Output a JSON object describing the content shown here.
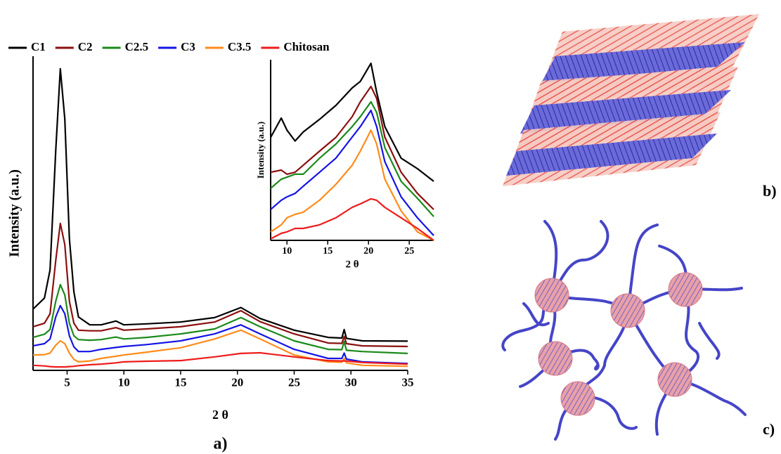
{
  "chart_data": [
    {
      "type": "line",
      "caption": "a)",
      "xlabel": "2 θ",
      "ylabel": "Intensity (a.u.)",
      "xlim": [
        2,
        35
      ],
      "xticks": [
        5,
        10,
        15,
        20,
        25,
        30,
        35
      ],
      "ylim": [
        0,
        100
      ],
      "x": [
        2,
        3,
        3.5,
        4,
        4.4,
        4.8,
        5.2,
        5.6,
        6,
        7,
        8,
        9.3,
        10,
        12,
        15,
        18,
        20.3,
        22,
        25,
        28,
        29.2,
        29.4,
        29.6,
        31,
        35
      ],
      "series": [
        {
          "name": "C1",
          "color": "#000000",
          "values": [
            19.5,
            23,
            32,
            70,
            96,
            80,
            42,
            25,
            17,
            14.5,
            14.5,
            15.7,
            14.5,
            14.8,
            15.4,
            16.8,
            20,
            16.5,
            12.8,
            10.5,
            10.3,
            13,
            10.2,
            9.4,
            9.3
          ]
        },
        {
          "name": "C2",
          "color": "#8b0f0f",
          "values": [
            13.9,
            15,
            18,
            35,
            46.8,
            40,
            22,
            15,
            12.8,
            12.6,
            12.6,
            13.6,
            12.8,
            13.2,
            13.9,
            15.4,
            19,
            15.5,
            11.6,
            8.7,
            8.6,
            10.8,
            8.5,
            7.8,
            7.6
          ]
        },
        {
          "name": "C2.5",
          "color": "#1a8a1a",
          "values": [
            10.5,
            11.5,
            13,
            22,
            27.3,
            24,
            15,
            11,
            9.8,
            9.6,
            9.8,
            10.6,
            10,
            10.5,
            11.6,
            13.2,
            16.8,
            13.9,
            9.4,
            6.7,
            6.6,
            9.2,
            6.4,
            6,
            5.4
          ]
        },
        {
          "name": "C3",
          "color": "#1414e6",
          "values": [
            7.8,
            8.5,
            10,
            17,
            20.6,
            18,
            11,
            7.5,
            6,
            6,
            6.7,
            7.3,
            7.6,
            8.2,
            9.4,
            11.6,
            14.5,
            11.6,
            6.7,
            3.8,
            3.8,
            5.5,
            3.6,
            2.7,
            2.2
          ]
        },
        {
          "name": "C3.5",
          "color": "#ff8c1a",
          "values": [
            4.9,
            5,
            5.5,
            8,
            9.4,
            8.5,
            5.5,
            3.5,
            2.7,
            3,
            3.8,
            4.5,
            4.9,
            5.8,
            7.2,
            10,
            12.8,
            10,
            4.9,
            2.7,
            2.6,
            3.8,
            2.4,
            1.6,
            1.3
          ]
        },
        {
          "name": "Chitosan",
          "color": "#ee1c1c",
          "values": [
            1.6,
            1.4,
            1.2,
            1.1,
            1.1,
            1.1,
            1.2,
            1.3,
            1.5,
            1.8,
            2,
            2.4,
            2.7,
            2.9,
            3.1,
            4.3,
            5.4,
            5.6,
            4.3,
            3.1,
            3,
            3,
            3,
            2.5,
            2
          ]
        }
      ]
    },
    {
      "type": "line",
      "xlabel": "2 θ",
      "ylabel": "Intensity (a.u.)",
      "xlim": [
        8,
        28
      ],
      "xticks": [
        10,
        15,
        20,
        25
      ],
      "ylim": [
        0,
        100
      ],
      "x": [
        8,
        9.3,
        10,
        11,
        12,
        14,
        16,
        18,
        19,
        20.3,
        21,
        22,
        24,
        26,
        28
      ],
      "series": [
        {
          "color": "#000000",
          "values": [
            57,
            67.7,
            61,
            55,
            60,
            67,
            74.7,
            84.4,
            88,
            98,
            82,
            63,
            45.5,
            39.7,
            32.7
          ]
        },
        {
          "color": "#8b0f0f",
          "values": [
            37.7,
            38.9,
            36.6,
            37.7,
            41.6,
            49.4,
            57,
            68.5,
            76.7,
            85.2,
            78.6,
            57.2,
            37.7,
            26,
            17.1
          ]
        },
        {
          "color": "#1a8a1a",
          "values": [
            28.8,
            33.9,
            35,
            36.6,
            36.6,
            45.5,
            53.3,
            63,
            68.5,
            76.7,
            70.8,
            51.4,
            32.7,
            23.3,
            13.2
          ]
        },
        {
          "color": "#1414e6",
          "values": [
            17.1,
            22.2,
            24.1,
            26,
            30,
            37.7,
            45.5,
            57.2,
            63,
            72,
            63,
            43.6,
            24.1,
            12.5,
            2.7
          ]
        },
        {
          "color": "#ff8c1a",
          "values": [
            4.7,
            8.6,
            12.5,
            14.4,
            15.6,
            22.2,
            31,
            41.6,
            49.4,
            61,
            53.3,
            33.9,
            16.3,
            4.7,
            0
          ]
        },
        {
          "color": "#ee1c1c",
          "values": [
            0.8,
            3.9,
            4.7,
            6.6,
            6.6,
            8.6,
            12.5,
            18.3,
            20.2,
            23,
            22.2,
            18.3,
            12.5,
            6.6,
            0
          ]
        }
      ]
    }
  ],
  "panel_labels": [
    "b)",
    "c)"
  ]
}
